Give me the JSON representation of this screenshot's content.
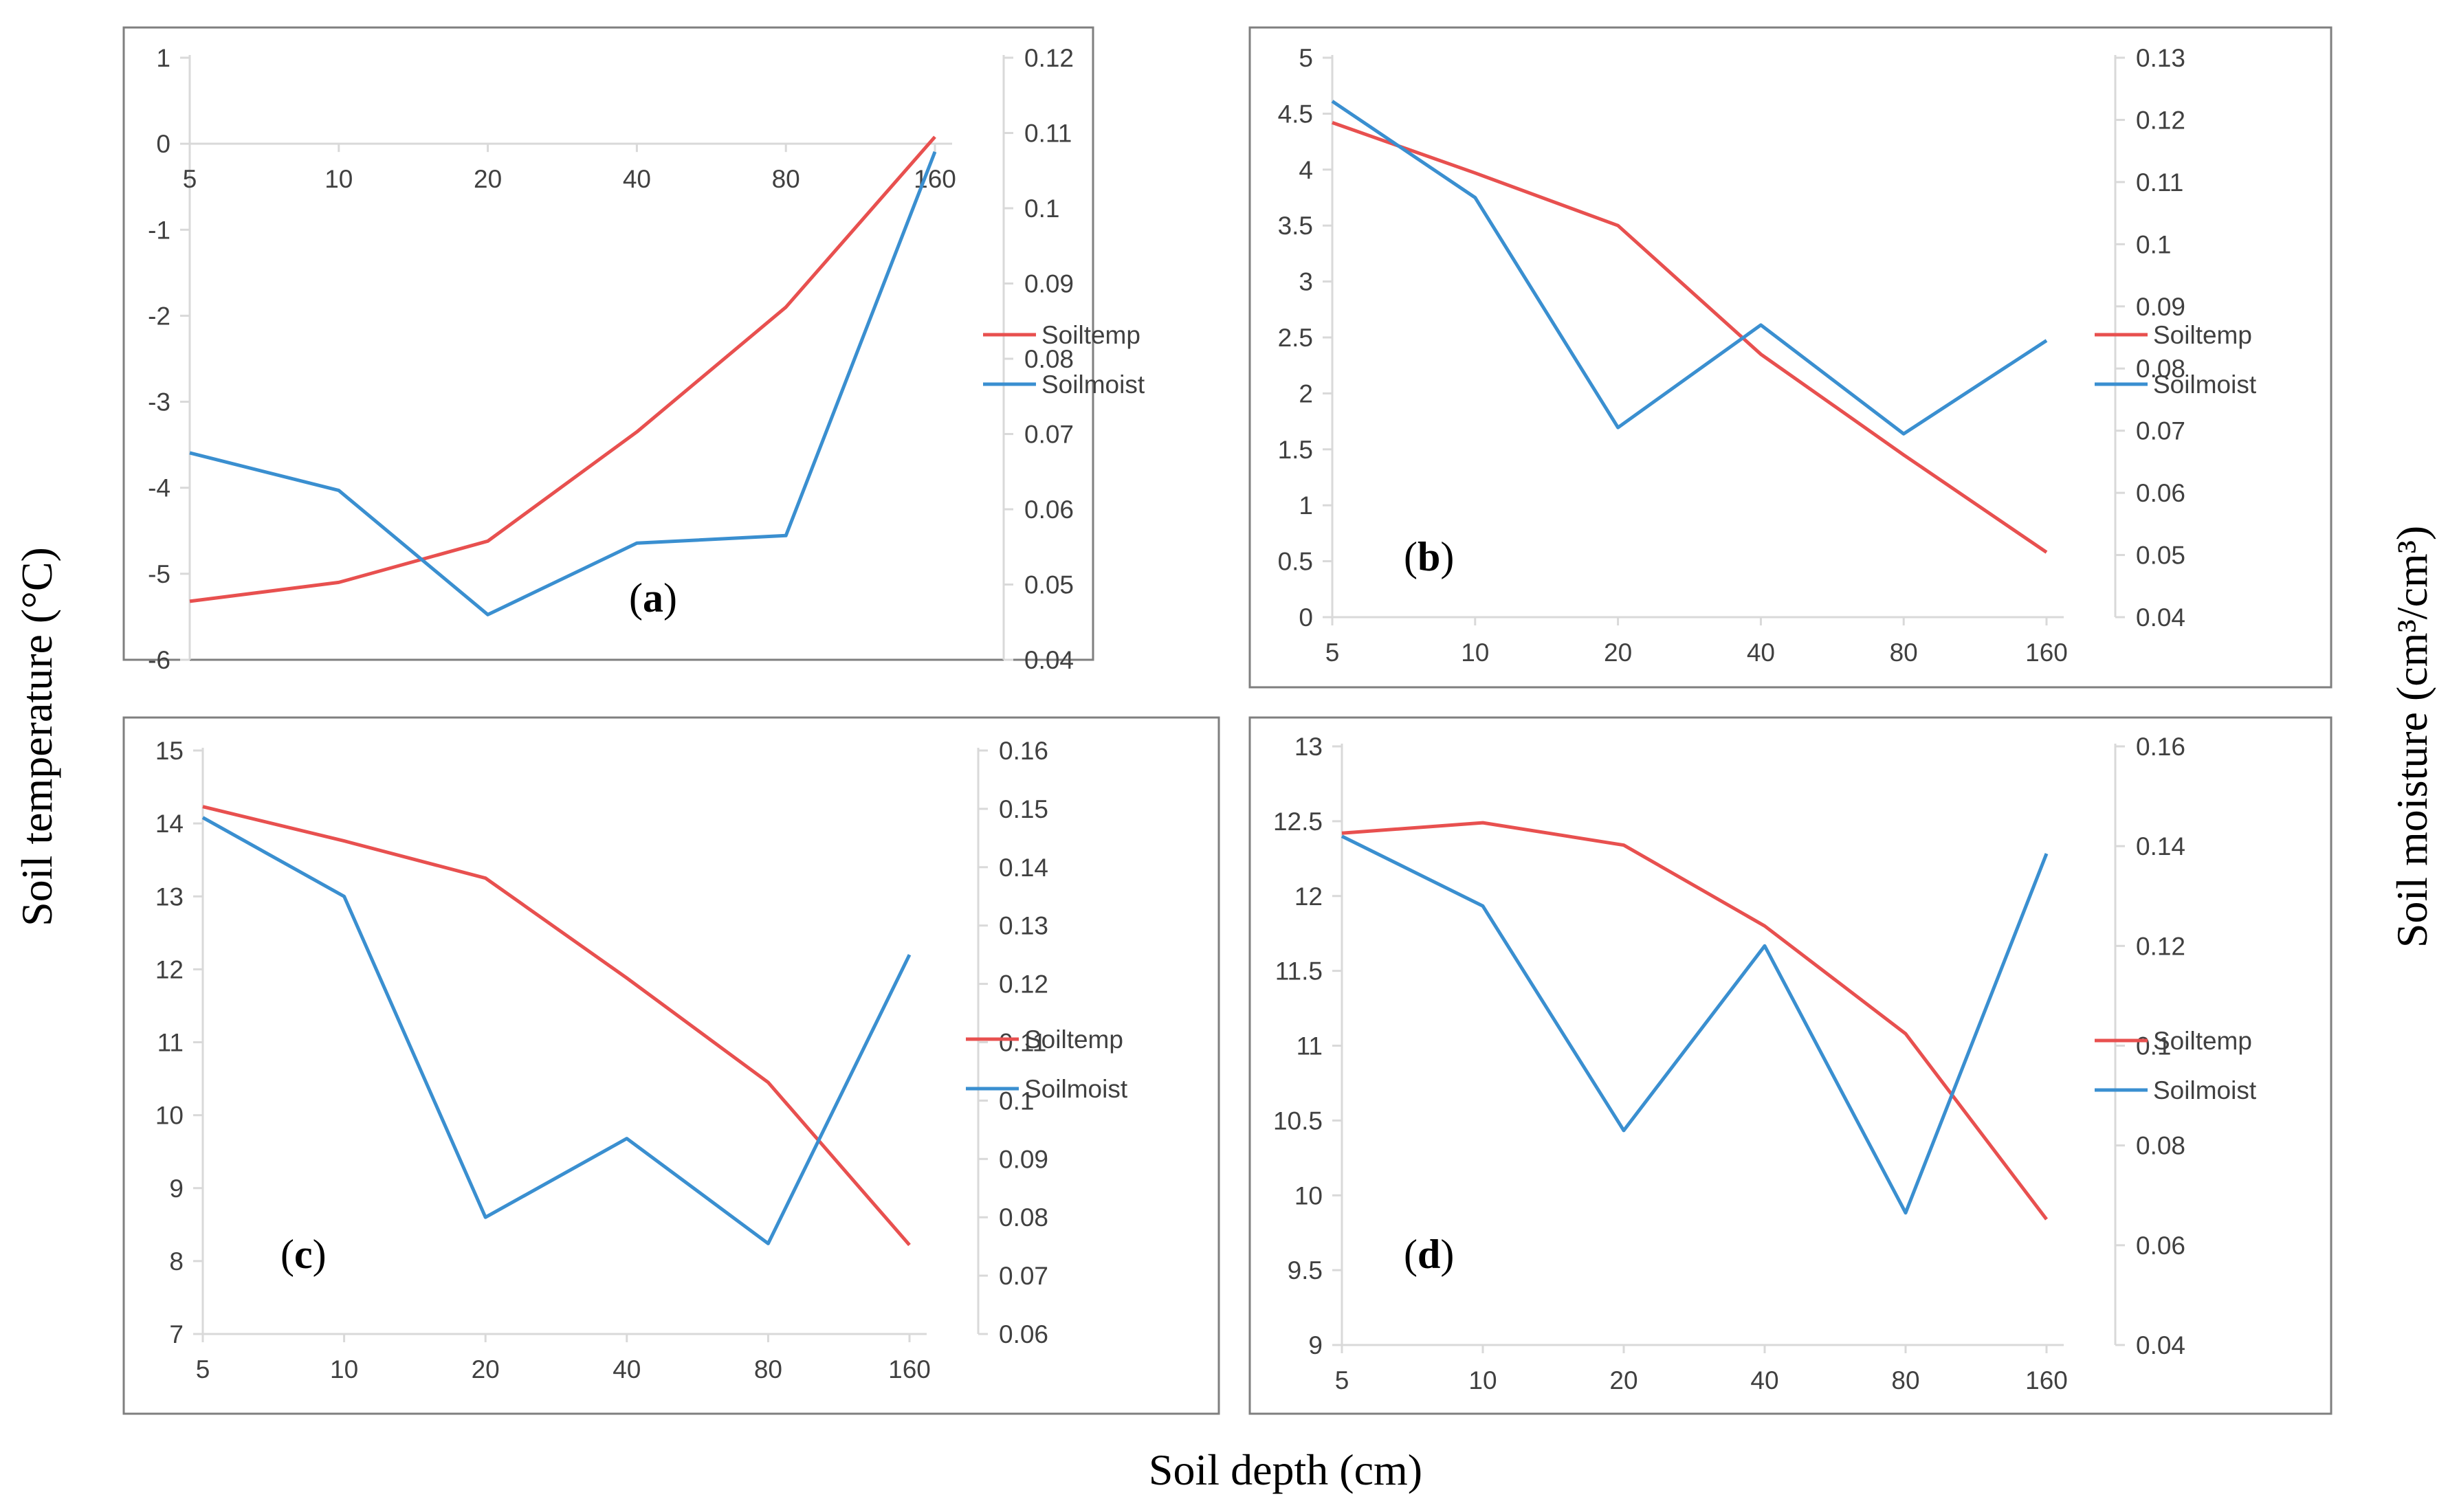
{
  "figure": {
    "xlabel": "Soil depth (cm)",
    "ylabel_left": "Soil temperature (°C)",
    "ylabel_right": "Soil moisture (cm³/cm³)",
    "colors": {
      "temp": "#e8504f",
      "moist": "#3a8fd0",
      "axis": "#d9d9d9",
      "frame": "#7f7f7f"
    }
  },
  "chart_data": [
    {
      "panel": "a",
      "type": "line",
      "categories": [
        "5",
        "10",
        "20",
        "40",
        "80",
        "160"
      ],
      "series": [
        {
          "name": "Soiltemp",
          "axis": "left",
          "values": [
            -5.32,
            -5.1,
            -4.62,
            -3.35,
            -1.9,
            0.08
          ]
        },
        {
          "name": "Soilmoist",
          "axis": "right",
          "values": [
            0.0675,
            0.0625,
            0.046,
            0.0555,
            0.0565,
            0.1075
          ]
        }
      ],
      "ylim_left": [
        -6,
        1
      ],
      "yticks_left": [
        "1",
        "0",
        "-1",
        "-2",
        "-3",
        "-4",
        "-5",
        "-6"
      ],
      "ylim_right": [
        0.04,
        0.12
      ],
      "yticks_right": [
        "0.12",
        "0.11",
        "0.1",
        "0.09",
        "0.08",
        "0.07",
        "0.06",
        "0.05",
        "0.04"
      ],
      "x_axis_at": 0
    },
    {
      "panel": "b",
      "type": "line",
      "categories": [
        "5",
        "10",
        "20",
        "40",
        "80",
        "160"
      ],
      "series": [
        {
          "name": "Soiltemp",
          "axis": "left",
          "values": [
            4.42,
            3.97,
            3.5,
            2.35,
            1.45,
            0.58
          ]
        },
        {
          "name": "Soilmoist",
          "axis": "right",
          "values": [
            0.123,
            0.1075,
            0.0705,
            0.087,
            0.0695,
            0.0845
          ]
        }
      ],
      "ylim_left": [
        0,
        5
      ],
      "yticks_left": [
        "5",
        "4.5",
        "4",
        "3.5",
        "3",
        "2.5",
        "2",
        "1.5",
        "1",
        "0.5",
        "0"
      ],
      "ylim_right": [
        0.04,
        0.13
      ],
      "yticks_right": [
        "0.13",
        "0.12",
        "0.11",
        "0.1",
        "0.09",
        "0.08",
        "0.07",
        "0.06",
        "0.05",
        "0.04"
      ]
    },
    {
      "panel": "c",
      "type": "line",
      "categories": [
        "5",
        "10",
        "20",
        "40",
        "80",
        "160"
      ],
      "series": [
        {
          "name": "Soiltemp",
          "axis": "left",
          "values": [
            14.23,
            13.76,
            13.25,
            11.88,
            10.45,
            8.22
          ]
        },
        {
          "name": "Soilmoist",
          "axis": "right",
          "values": [
            0.1485,
            0.135,
            0.08,
            0.0935,
            0.0755,
            0.125
          ]
        }
      ],
      "ylim_left": [
        7,
        15
      ],
      "yticks_left": [
        "15",
        "14",
        "13",
        "12",
        "11",
        "10",
        "9",
        "8",
        "7"
      ],
      "ylim_right": [
        0.06,
        0.16
      ],
      "yticks_right": [
        "0.16",
        "0.15",
        "0.14",
        "0.13",
        "0.12",
        "0.11",
        "0.1",
        "0.09",
        "0.08",
        "0.07",
        "0.06"
      ]
    },
    {
      "panel": "d",
      "type": "line",
      "categories": [
        "5",
        "10",
        "20",
        "40",
        "80",
        "160"
      ],
      "series": [
        {
          "name": "Soiltemp",
          "axis": "left",
          "values": [
            12.42,
            12.49,
            12.34,
            11.8,
            11.08,
            9.84
          ]
        },
        {
          "name": "Soilmoist",
          "axis": "right",
          "values": [
            0.142,
            0.128,
            0.083,
            0.12,
            0.0665,
            0.1385
          ]
        }
      ],
      "ylim_left": [
        9,
        13
      ],
      "yticks_left": [
        "13",
        "12.5",
        "12",
        "11.5",
        "11",
        "10.5",
        "10",
        "9.5",
        "9"
      ],
      "ylim_right": [
        0.04,
        0.16
      ],
      "yticks_right": [
        "0.16",
        "0.14",
        "0.12",
        "0.1",
        "0.08",
        "0.06",
        "0.04"
      ]
    }
  ]
}
